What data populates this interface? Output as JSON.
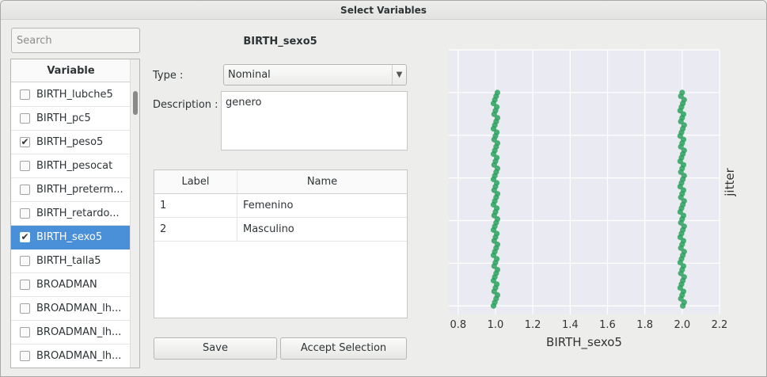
{
  "window": {
    "title": "Select Variables"
  },
  "search": {
    "placeholder": "Search",
    "value": ""
  },
  "variable_list": {
    "header": "Variable",
    "items": [
      {
        "label": "BIRTH_lubche5",
        "checked": false,
        "selected": false
      },
      {
        "label": "BIRTH_pc5",
        "checked": false,
        "selected": false
      },
      {
        "label": "BIRTH_peso5",
        "checked": true,
        "selected": false
      },
      {
        "label": "BIRTH_pesocat",
        "checked": false,
        "selected": false
      },
      {
        "label": "BIRTH_preterm...",
        "checked": false,
        "selected": false
      },
      {
        "label": "BIRTH_retardo...",
        "checked": false,
        "selected": false
      },
      {
        "label": "BIRTH_sexo5",
        "checked": true,
        "selected": true
      },
      {
        "label": "BIRTH_talla5",
        "checked": false,
        "selected": false
      },
      {
        "label": "BROADMAN",
        "checked": false,
        "selected": false
      },
      {
        "label": "BROADMAN_lh...",
        "checked": false,
        "selected": false
      },
      {
        "label": "BROADMAN_lh...",
        "checked": false,
        "selected": false
      },
      {
        "label": "BROADMAN_lh...",
        "checked": false,
        "selected": false
      }
    ]
  },
  "details": {
    "variable_name": "BIRTH_sexo5",
    "type_label": "Type :",
    "type_value": "Nominal",
    "description_label": "Description :",
    "description_value": "genero",
    "labels_table": {
      "columns": [
        "Label",
        "Name"
      ],
      "rows": [
        [
          "1",
          "Femenino"
        ],
        [
          "2",
          "Masculino"
        ]
      ]
    },
    "save_button": "Save",
    "accept_button": "Accept Selection"
  },
  "chart_data": {
    "type": "scatter",
    "title": "",
    "xlabel": "BIRTH_sexo5",
    "ylabel": "jitter",
    "xlim": [
      0.75,
      2.2
    ],
    "xticks": [
      "0.8",
      "1.0",
      "1.2",
      "1.4",
      "1.6",
      "1.8",
      "2.0",
      "2.2"
    ],
    "xtick_values": [
      0.8,
      1.0,
      1.2,
      1.4,
      1.6,
      1.8,
      2.0,
      2.2
    ],
    "ylim": [
      -0.2,
      6.0
    ],
    "grid": true,
    "point_color": "#2ca25f",
    "background_color": "#eaeaf2",
    "series": [
      {
        "x": 1.0,
        "y_min": 0.0,
        "y_max": 5.0
      },
      {
        "x": 2.0,
        "y_min": 0.0,
        "y_max": 5.0
      }
    ]
  }
}
